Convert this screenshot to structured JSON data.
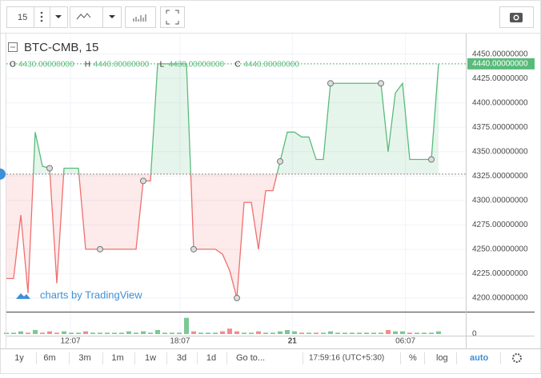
{
  "toolbar": {
    "interval": "15"
  },
  "chart_data": {
    "type": "line",
    "symbol": "BTC-CMB, 15",
    "ohlc": [
      {
        "key": "O",
        "value": "4430.00000000"
      },
      {
        "key": "H",
        "value": "4440.00000000"
      },
      {
        "key": "L",
        "value": "4430.00000000"
      },
      {
        "key": "C",
        "value": "4440.00000000"
      }
    ],
    "series": [
      {
        "name": "BTC-CMB",
        "color": "#59bb7b",
        "down_color": "#ef6f6f",
        "values": [
          4220,
          4220,
          4285,
          4205,
          4370,
          4335,
          4333,
          4215,
          4333,
          4333,
          4333,
          4250,
          4250,
          4250,
          4250,
          4250,
          4250,
          4250,
          4250,
          4320,
          4320,
          4440,
          4440,
          4440,
          4440,
          4440,
          4250,
          4250,
          4250,
          4250,
          4245,
          4228,
          4200,
          4298,
          4298,
          4250,
          4310,
          4310,
          4340,
          4370,
          4370,
          4365,
          4365,
          4342,
          4342,
          4420,
          4420,
          4420,
          4420,
          4420,
          4420,
          4420,
          4420,
          4350,
          4410,
          4420,
          4342,
          4342,
          4342,
          4342,
          4440
        ]
      }
    ],
    "baseline": 4327,
    "marked_points": [
      6,
      13,
      19,
      26,
      32,
      38,
      45,
      52,
      59
    ],
    "last_label": "4440.00000000",
    "ylim": [
      4186,
      4471
    ],
    "yticks": [
      {
        "value": 4450,
        "label": "4450.00000000"
      },
      {
        "value": 4425,
        "label": "4425.00000000"
      },
      {
        "value": 4400,
        "label": "4400.00000000"
      },
      {
        "value": 4375,
        "label": "4375.00000000"
      },
      {
        "value": 4350,
        "label": "4350.00000000"
      },
      {
        "value": 4325,
        "label": "4325.00000000"
      },
      {
        "value": 4300,
        "label": "4300.00000000"
      },
      {
        "value": 4275,
        "label": "4275.00000000"
      },
      {
        "value": 4250,
        "label": "4250.00000000"
      },
      {
        "value": 4225,
        "label": "4225.00000000"
      },
      {
        "value": 4200,
        "label": "4200.00000000"
      }
    ],
    "xticks": [
      {
        "value": 8.9,
        "label": "12:07"
      },
      {
        "value": 24.1,
        "label": "18:07"
      },
      {
        "value": 39.7,
        "label": "21"
      },
      {
        "value": 55.4,
        "label": "06:07"
      }
    ],
    "grid": true,
    "volume": {
      "values": [
        1,
        1,
        2,
        1,
        3,
        1,
        2,
        1,
        2,
        1,
        1,
        2,
        1,
        1,
        1,
        1,
        1,
        2,
        1,
        2,
        1,
        3,
        1,
        1,
        1,
        12,
        2,
        1,
        1,
        1,
        2,
        4,
        2,
        1,
        1,
        2,
        1,
        1,
        2,
        3,
        2,
        1,
        1,
        1,
        1,
        2,
        1,
        1,
        1,
        1,
        1,
        1,
        1,
        3,
        2,
        2,
        1,
        1,
        1,
        1,
        2
      ],
      "ylim": [
        0,
        13
      ],
      "yticks": [
        0
      ]
    },
    "watermark": "charts by TradingView"
  },
  "bottom_bar": {
    "ranges": [
      "1y",
      "6m",
      "3m",
      "1m",
      "1w",
      "3d",
      "1d"
    ],
    "goto": "Go to...",
    "clock": "17:59:16 (UTC+5:30)",
    "percent": "%",
    "log": "log",
    "auto": "auto"
  }
}
